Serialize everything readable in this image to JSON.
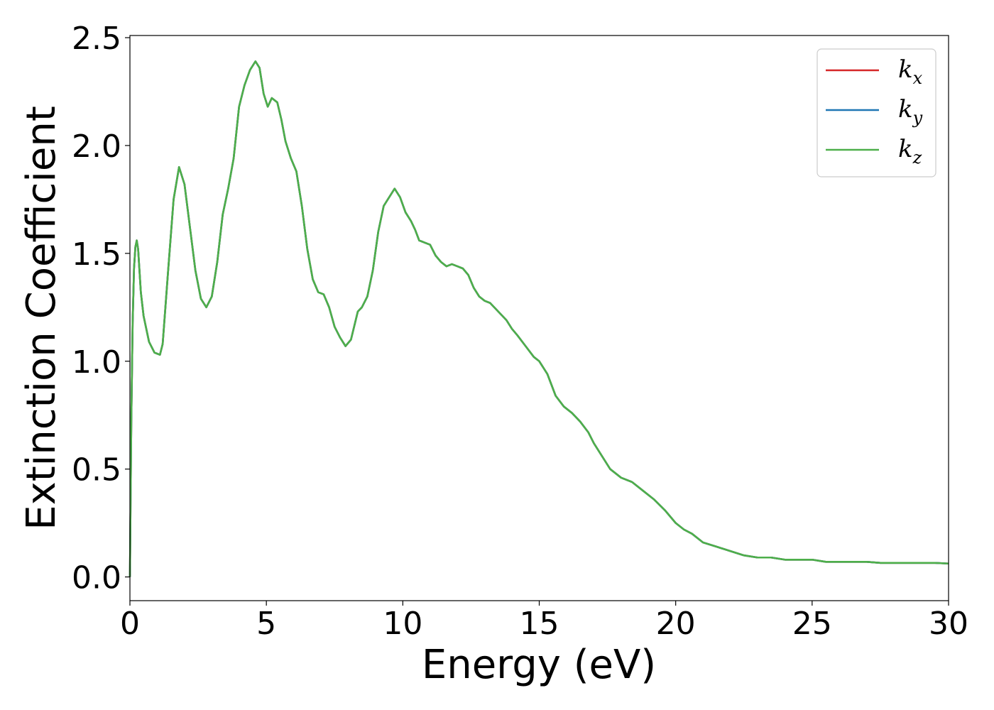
{
  "chart_data": {
    "type": "line",
    "title": "",
    "xlabel": "Energy (eV)",
    "ylabel": "Extinction Coefficient",
    "xlim": [
      0,
      30
    ],
    "ylim": [
      -0.11,
      2.51
    ],
    "x_ticks": [
      0,
      5,
      10,
      15,
      20,
      25,
      30
    ],
    "x_tick_labels": [
      "0",
      "5",
      "10",
      "15",
      "20",
      "25",
      "30"
    ],
    "y_ticks": [
      0.0,
      0.5,
      1.0,
      1.5,
      2.0,
      2.5
    ],
    "y_tick_labels": [
      "0.0",
      "0.5",
      "1.0",
      "1.5",
      "2.0",
      "2.5"
    ],
    "grid": false,
    "legend_position": "top-right",
    "legend": [
      {
        "base": "k",
        "sub": "x",
        "color": "#d62728"
      },
      {
        "base": "k",
        "sub": "y",
        "color": "#1f77b4"
      },
      {
        "base": "k",
        "sub": "z",
        "color": "#4daf4a"
      }
    ],
    "x": [
      0,
      0.05,
      0.1,
      0.15,
      0.2,
      0.25,
      0.3,
      0.4,
      0.5,
      0.7,
      0.9,
      1.1,
      1.2,
      1.4,
      1.6,
      1.8,
      2.0,
      2.2,
      2.4,
      2.6,
      2.8,
      3.0,
      3.2,
      3.4,
      3.6,
      3.8,
      4.0,
      4.2,
      4.4,
      4.6,
      4.75,
      4.9,
      5.05,
      5.2,
      5.4,
      5.55,
      5.7,
      5.9,
      6.1,
      6.3,
      6.5,
      6.7,
      6.9,
      7.1,
      7.3,
      7.5,
      7.7,
      7.9,
      8.1,
      8.35,
      8.5,
      8.7,
      8.9,
      9.1,
      9.3,
      9.5,
      9.7,
      9.9,
      10.1,
      10.3,
      10.45,
      10.6,
      10.8,
      11.0,
      11.2,
      11.4,
      11.6,
      11.8,
      12.0,
      12.2,
      12.4,
      12.6,
      12.8,
      13.0,
      13.2,
      13.5,
      13.8,
      14.0,
      14.2,
      14.5,
      14.8,
      15.0,
      15.3,
      15.6,
      15.9,
      16.2,
      16.5,
      16.8,
      17.0,
      17.3,
      17.6,
      18.0,
      18.4,
      18.8,
      19.2,
      19.6,
      20.0,
      20.3,
      20.6,
      21.0,
      21.5,
      22.0,
      22.5,
      23.0,
      23.5,
      24.0,
      24.5,
      25.0,
      25.5,
      26.0,
      26.5,
      27.0,
      27.5,
      28.0,
      28.5,
      29.0,
      29.5,
      30.0
    ],
    "series": [
      {
        "name": "k_x",
        "color": "#d62728",
        "values": [
          0.0,
          0.72,
          1.18,
          1.43,
          1.53,
          1.56,
          1.52,
          1.32,
          1.21,
          1.09,
          1.04,
          1.03,
          1.08,
          1.42,
          1.75,
          1.9,
          1.82,
          1.62,
          1.42,
          1.29,
          1.25,
          1.3,
          1.46,
          1.68,
          1.8,
          1.94,
          2.18,
          2.28,
          2.35,
          2.39,
          2.36,
          2.24,
          2.18,
          2.22,
          2.2,
          2.12,
          2.02,
          1.94,
          1.88,
          1.72,
          1.52,
          1.38,
          1.32,
          1.31,
          1.25,
          1.16,
          1.11,
          1.07,
          1.1,
          1.23,
          1.25,
          1.3,
          1.42,
          1.6,
          1.72,
          1.76,
          1.8,
          1.76,
          1.69,
          1.65,
          1.61,
          1.56,
          1.55,
          1.54,
          1.49,
          1.46,
          1.44,
          1.45,
          1.44,
          1.43,
          1.4,
          1.34,
          1.3,
          1.28,
          1.27,
          1.23,
          1.19,
          1.15,
          1.12,
          1.07,
          1.02,
          1.0,
          0.94,
          0.84,
          0.79,
          0.76,
          0.72,
          0.67,
          0.62,
          0.56,
          0.5,
          0.46,
          0.44,
          0.4,
          0.36,
          0.31,
          0.25,
          0.22,
          0.2,
          0.16,
          0.14,
          0.12,
          0.1,
          0.09,
          0.09,
          0.08,
          0.08,
          0.08,
          0.07,
          0.07,
          0.07,
          0.07,
          0.065,
          0.065,
          0.065,
          0.065,
          0.065,
          0.062
        ]
      },
      {
        "name": "k_y",
        "color": "#1f77b4",
        "values": [
          0.0,
          0.72,
          1.18,
          1.43,
          1.53,
          1.56,
          1.52,
          1.32,
          1.21,
          1.09,
          1.04,
          1.03,
          1.08,
          1.42,
          1.75,
          1.9,
          1.82,
          1.62,
          1.42,
          1.29,
          1.25,
          1.3,
          1.46,
          1.68,
          1.8,
          1.94,
          2.18,
          2.28,
          2.35,
          2.39,
          2.36,
          2.24,
          2.18,
          2.22,
          2.2,
          2.12,
          2.02,
          1.94,
          1.88,
          1.72,
          1.52,
          1.38,
          1.32,
          1.31,
          1.25,
          1.16,
          1.11,
          1.07,
          1.1,
          1.23,
          1.25,
          1.3,
          1.42,
          1.6,
          1.72,
          1.76,
          1.8,
          1.76,
          1.69,
          1.65,
          1.61,
          1.56,
          1.55,
          1.54,
          1.49,
          1.46,
          1.44,
          1.45,
          1.44,
          1.43,
          1.4,
          1.34,
          1.3,
          1.28,
          1.27,
          1.23,
          1.19,
          1.15,
          1.12,
          1.07,
          1.02,
          1.0,
          0.94,
          0.84,
          0.79,
          0.76,
          0.72,
          0.67,
          0.62,
          0.56,
          0.5,
          0.46,
          0.44,
          0.4,
          0.36,
          0.31,
          0.25,
          0.22,
          0.2,
          0.16,
          0.14,
          0.12,
          0.1,
          0.09,
          0.09,
          0.08,
          0.08,
          0.08,
          0.07,
          0.07,
          0.07,
          0.07,
          0.065,
          0.065,
          0.065,
          0.065,
          0.065,
          0.062
        ]
      },
      {
        "name": "k_z",
        "color": "#4daf4a",
        "values": [
          0.0,
          0.72,
          1.18,
          1.43,
          1.53,
          1.56,
          1.52,
          1.32,
          1.21,
          1.09,
          1.04,
          1.03,
          1.08,
          1.42,
          1.75,
          1.9,
          1.82,
          1.62,
          1.42,
          1.29,
          1.25,
          1.3,
          1.46,
          1.68,
          1.8,
          1.94,
          2.18,
          2.28,
          2.35,
          2.39,
          2.36,
          2.24,
          2.18,
          2.22,
          2.2,
          2.12,
          2.02,
          1.94,
          1.88,
          1.72,
          1.52,
          1.38,
          1.32,
          1.31,
          1.25,
          1.16,
          1.11,
          1.07,
          1.1,
          1.23,
          1.25,
          1.3,
          1.42,
          1.6,
          1.72,
          1.76,
          1.8,
          1.76,
          1.69,
          1.65,
          1.61,
          1.56,
          1.55,
          1.54,
          1.49,
          1.46,
          1.44,
          1.45,
          1.44,
          1.43,
          1.4,
          1.34,
          1.3,
          1.28,
          1.27,
          1.23,
          1.19,
          1.15,
          1.12,
          1.07,
          1.02,
          1.0,
          0.94,
          0.84,
          0.79,
          0.76,
          0.72,
          0.67,
          0.62,
          0.56,
          0.5,
          0.46,
          0.44,
          0.4,
          0.36,
          0.31,
          0.25,
          0.22,
          0.2,
          0.16,
          0.14,
          0.12,
          0.1,
          0.09,
          0.09,
          0.08,
          0.08,
          0.08,
          0.07,
          0.07,
          0.07,
          0.07,
          0.065,
          0.065,
          0.065,
          0.065,
          0.065,
          0.062
        ]
      }
    ]
  }
}
